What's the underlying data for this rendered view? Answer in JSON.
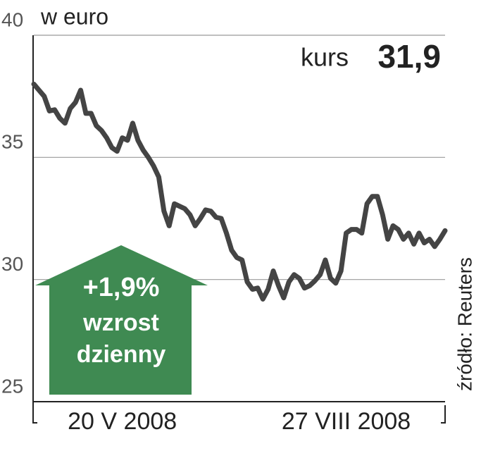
{
  "chart_data": {
    "type": "line",
    "y_label": "w euro",
    "headline_label": "kurs",
    "headline_value": "31,9",
    "annotation": [
      "+1,9%",
      "wzrost",
      "dzienny"
    ],
    "source": "źródło: Reuters",
    "categories": [
      null,
      null,
      null,
      null,
      null,
      null,
      null,
      null,
      null,
      null,
      null,
      null,
      null,
      null,
      null,
      null,
      null,
      "20 V 2008",
      null,
      null,
      null,
      null,
      null,
      null,
      null,
      null,
      null,
      null,
      null,
      null,
      null,
      null,
      null,
      null,
      null,
      null,
      null,
      null,
      null,
      null,
      null,
      null,
      null,
      null,
      null,
      null,
      null,
      null,
      null,
      null,
      null,
      null,
      null,
      null,
      null,
      null,
      null,
      null,
      null,
      null,
      "27 VIII 2008",
      null,
      null,
      null,
      null,
      null,
      null,
      null,
      null,
      null,
      null,
      null,
      null,
      null,
      null,
      null,
      null,
      null,
      null,
      null
    ],
    "series": [
      {
        "name": "kurs",
        "color": "#444444",
        "values": [
          38.0,
          37.75,
          37.5,
          36.9,
          36.95,
          36.6,
          36.4,
          37.0,
          37.25,
          37.75,
          36.8,
          36.8,
          36.3,
          36.1,
          35.8,
          35.4,
          35.25,
          35.8,
          35.7,
          36.4,
          35.7,
          35.3,
          35.0,
          34.65,
          34.2,
          32.8,
          32.2,
          33.1,
          33.0,
          32.9,
          32.65,
          32.2,
          32.5,
          32.85,
          32.8,
          32.55,
          32.5,
          31.9,
          31.2,
          30.9,
          30.8,
          29.9,
          29.6,
          29.65,
          29.2,
          29.6,
          30.35,
          29.75,
          29.25,
          29.9,
          30.2,
          30.05,
          29.65,
          29.75,
          29.95,
          30.2,
          30.8,
          30.05,
          29.85,
          30.35,
          31.9,
          32.05,
          32.05,
          31.9,
          33.1,
          33.4,
          33.4,
          32.65,
          31.65,
          32.2,
          32.05,
          31.65,
          31.9,
          31.45,
          31.9,
          31.5,
          31.65,
          31.35,
          31.65,
          32.0
        ]
      }
    ],
    "ylim": [
      25,
      40
    ],
    "yticks": [
      25,
      30,
      35,
      40
    ],
    "grid": true
  }
}
